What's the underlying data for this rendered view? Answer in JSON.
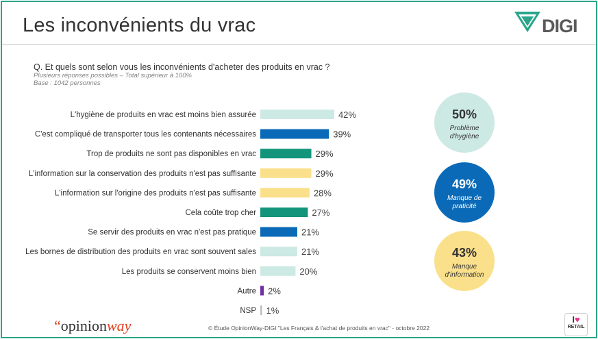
{
  "header": {
    "title": "Les inconvénients du vrac",
    "logo_text": "DIGI"
  },
  "question": {
    "text": "Q. Et quels sont selon vous les inconvénients d'acheter des produits en vrac ?",
    "note1": "Plusieurs réponses possibles – Total supérieur à 100%",
    "note2": "Base : 1042 personnes"
  },
  "colors": {
    "light_teal": "#cde9e3",
    "blue": "#0a6ab8",
    "green": "#13957c",
    "yellow": "#fbe08b",
    "purple": "#7030a0",
    "grey": "#bfbfbf",
    "frame": "#2aa58a"
  },
  "chart_data": {
    "type": "bar",
    "orientation": "horizontal",
    "categories": [
      "L'hygiène de produits en vrac est moins bien assurée",
      "C'est compliqué de transporter tous les contenants nécessaires",
      "Trop de produits ne sont pas disponibles en vrac",
      "L'information sur la conservation des produits n'est pas suffisante",
      "L'information sur l'origine des produits n'est pas suffisante",
      "Cela coûte trop cher",
      "Se servir des produits en vrac n'est pas pratique",
      "Les bornes de distribution des produits en vrac sont souvent sales",
      "Les produits se conservent moins bien",
      "Autre",
      "NSP"
    ],
    "values": [
      42,
      39,
      29,
      29,
      28,
      27,
      21,
      21,
      20,
      2,
      1
    ],
    "value_labels": [
      "42%",
      "39%",
      "29%",
      "29%",
      "28%",
      "27%",
      "21%",
      "21%",
      "20%",
      "2%",
      "1%"
    ],
    "bar_colors": [
      "#cde9e3",
      "#0a6ab8",
      "#13957c",
      "#fbe08b",
      "#fbe08b",
      "#13957c",
      "#0a6ab8",
      "#cde9e3",
      "#cde9e3",
      "#7030a0",
      "#bfbfbf"
    ],
    "xlim": [
      0,
      100
    ]
  },
  "summary": [
    {
      "pct": "50%",
      "caption1": "Problème",
      "caption2": "d'hygiène",
      "bg": "#cde9e3",
      "fg": "#333333"
    },
    {
      "pct": "49%",
      "caption1": "Manque de",
      "caption2": "praticité",
      "bg": "#0a6ab8",
      "fg": "#ffffff"
    },
    {
      "pct": "43%",
      "caption1": "Manque",
      "caption2": "d'information",
      "bg": "#fbe08b",
      "fg": "#333333"
    }
  ],
  "footer": {
    "brand_quote": "“",
    "brand_opinion": "opinion",
    "brand_way": "way",
    "note": "© Étude OpinionWay-DIGI \"Les Français & l'achat de produits en vrac\" - octobre 2022",
    "retail_badge_i": "I",
    "retail_badge_heart": "♥",
    "retail_badge_text": "RETAIL"
  }
}
